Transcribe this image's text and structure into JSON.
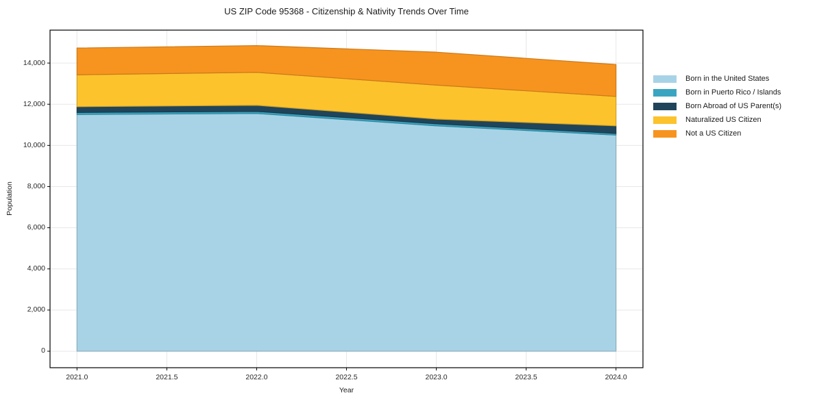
{
  "page": {
    "background": "#ffffff",
    "text_color": "#1a1a1a",
    "grid_color": "#e7e7e7",
    "spine_color": "#000000"
  },
  "chart_data": {
    "type": "area",
    "stacked": true,
    "title": "US ZIP Code 95368 - Citizenship & Nativity Trends Over Time",
    "xlabel": "Year",
    "ylabel": "Population",
    "x": [
      2021,
      2022,
      2023,
      2024
    ],
    "x_tick_values": [
      2021.0,
      2021.5,
      2022.0,
      2022.5,
      2023.0,
      2023.5,
      2024.0
    ],
    "x_tick_labels": [
      "2021.0",
      "2021.5",
      "2022.0",
      "2022.5",
      "2023.0",
      "2023.5",
      "2024.0"
    ],
    "y_tick_values": [
      0,
      2000,
      4000,
      6000,
      8000,
      10000,
      12000,
      14000
    ],
    "y_tick_labels": [
      "0",
      "2,000",
      "4,000",
      "6,000",
      "8,000",
      "10,000",
      "12,000",
      "14,000"
    ],
    "xlim": [
      2020.85,
      2024.15
    ],
    "ylim": [
      -800,
      15600
    ],
    "grid": true,
    "legend_position": "right",
    "series": [
      {
        "name": "Born in the United States",
        "color": "#a8d3e6",
        "values": [
          11500,
          11550,
          10950,
          10500
        ]
      },
      {
        "name": "Born in Puerto Rico / Islands",
        "color": "#3aa5c1",
        "values": [
          100,
          100,
          100,
          80
        ]
      },
      {
        "name": "Born Abroad of US Parent(s)",
        "color": "#20455a",
        "values": [
          280,
          300,
          230,
          370
        ]
      },
      {
        "name": "Naturalized US Citizen",
        "color": "#fcc32d",
        "values": [
          1550,
          1600,
          1650,
          1430
        ]
      },
      {
        "name": "Not a US Citizen",
        "color": "#f7941f",
        "values": [
          1300,
          1300,
          1600,
          1550
        ]
      }
    ]
  }
}
